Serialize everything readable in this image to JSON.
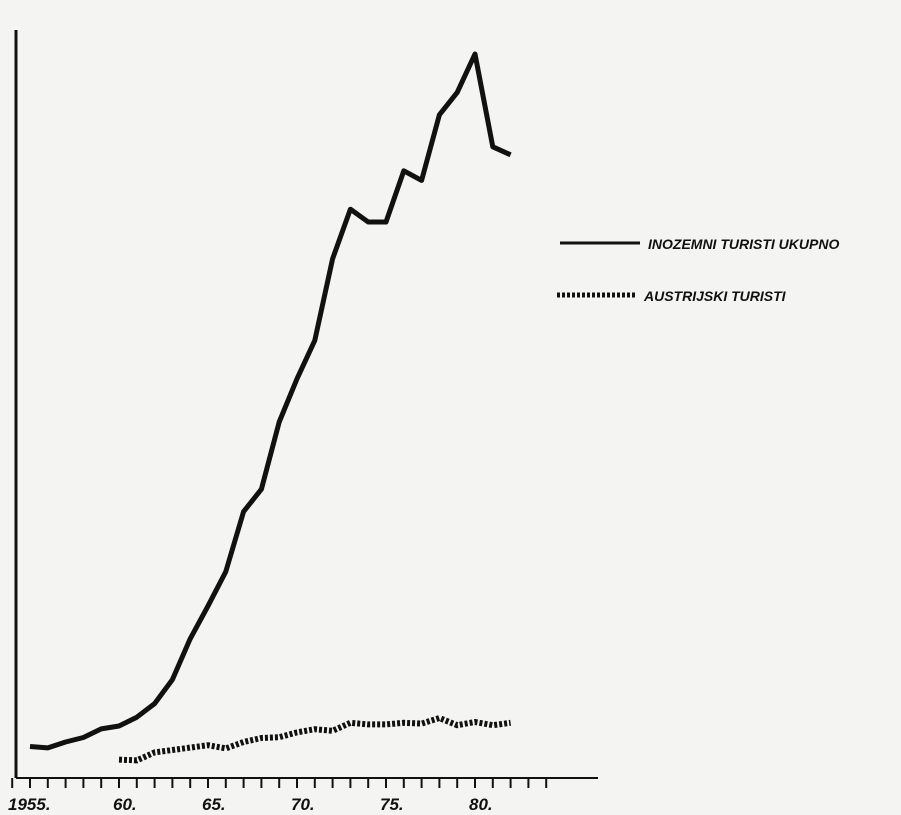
{
  "chart_data": {
    "type": "line",
    "xlim": [
      1955,
      1984
    ],
    "x_ticks": [
      "1955.",
      "60.",
      "65.",
      "70.",
      "75.",
      "80."
    ],
    "x_tick_values": [
      1955,
      1960,
      1965,
      1970,
      1975,
      1980
    ],
    "legend_placement": "right",
    "grid": false,
    "series": [
      {
        "name": "INOZEMNI TURISTI UKUPNO",
        "style": "solid",
        "x": [
          1955,
          1956,
          1957,
          1958,
          1959,
          1960,
          1961,
          1962,
          1963,
          1964,
          1965,
          1966,
          1967,
          1968,
          1969,
          1970,
          1971,
          1972,
          1973,
          1974,
          1975,
          1976,
          1977,
          1978,
          1979,
          1980,
          1981,
          1982
        ],
        "values": [
          0.22,
          0.13,
          0.5,
          0.78,
          1.32,
          1.5,
          2.05,
          2.9,
          4.4,
          6.95,
          9.0,
          11.15,
          14.9,
          16.3,
          20.5,
          23.2,
          25.6,
          30.7,
          33.8,
          33.0,
          33.0,
          36.2,
          35.6,
          39.7,
          41.1,
          43.5,
          37.7,
          37.2
        ]
      },
      {
        "name": "AUSTRIJSKI TURISTI",
        "style": "dotted",
        "x": [
          1960,
          1961,
          1962,
          1963,
          1964,
          1965,
          1966,
          1967,
          1968,
          1969,
          1970,
          1971,
          1972,
          1973,
          1974,
          1975,
          1976,
          1977,
          1978,
          1979,
          1980,
          1981,
          1982
        ],
        "values": [
          -0.6,
          -0.65,
          -0.15,
          0.0,
          0.15,
          0.3,
          0.1,
          0.5,
          0.75,
          0.8,
          1.1,
          1.3,
          1.2,
          1.7,
          1.6,
          1.6,
          1.7,
          1.65,
          2.0,
          1.55,
          1.75,
          1.55,
          1.7
        ]
      }
    ]
  },
  "colors": {
    "line": "#111111",
    "axis": "#111111",
    "background": "#f4f4f2"
  }
}
